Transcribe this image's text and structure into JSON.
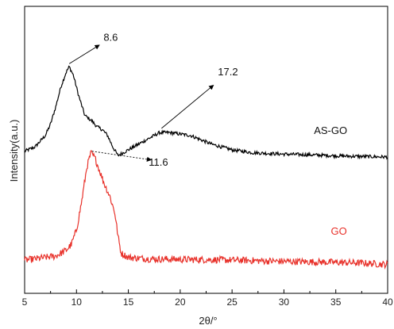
{
  "chart_data": {
    "type": "line",
    "xlabel": "2θ/°",
    "ylabel": "Intensity(a.u.)",
    "xlim": [
      5,
      40
    ],
    "xticks": [
      5,
      10,
      15,
      20,
      25,
      30,
      35,
      40
    ],
    "yticks_shown": false,
    "grid": false,
    "series": [
      {
        "name": "AS-GO",
        "color": "#000000",
        "points": [
          [
            5,
            0.495
          ],
          [
            6,
            0.51
          ],
          [
            7,
            0.55
          ],
          [
            7.5,
            0.59
          ],
          [
            8,
            0.65
          ],
          [
            8.5,
            0.72
          ],
          [
            9,
            0.77
          ],
          [
            9.3,
            0.79
          ],
          [
            9.7,
            0.76
          ],
          [
            10.2,
            0.69
          ],
          [
            10.8,
            0.62
          ],
          [
            11.5,
            0.6
          ],
          [
            12,
            0.58
          ],
          [
            12.5,
            0.57
          ],
          [
            13,
            0.55
          ],
          [
            13.5,
            0.51
          ],
          [
            14,
            0.48
          ],
          [
            14.5,
            0.49
          ],
          [
            15,
            0.5
          ],
          [
            16,
            0.52
          ],
          [
            17,
            0.54
          ],
          [
            18,
            0.56
          ],
          [
            19,
            0.56
          ],
          [
            20,
            0.555
          ],
          [
            21,
            0.55
          ],
          [
            22,
            0.535
          ],
          [
            23,
            0.52
          ],
          [
            24,
            0.51
          ],
          [
            25,
            0.5
          ],
          [
            27,
            0.49
          ],
          [
            30,
            0.485
          ],
          [
            33,
            0.482
          ],
          [
            36,
            0.478
          ],
          [
            40,
            0.475
          ]
        ]
      },
      {
        "name": "GO",
        "color": "#e8312a",
        "points": [
          [
            5,
            0.115
          ],
          [
            6,
            0.12
          ],
          [
            7,
            0.125
          ],
          [
            8,
            0.13
          ],
          [
            9,
            0.15
          ],
          [
            9.5,
            0.17
          ],
          [
            10,
            0.22
          ],
          [
            10.5,
            0.32
          ],
          [
            11,
            0.44
          ],
          [
            11.4,
            0.49
          ],
          [
            11.8,
            0.47
          ],
          [
            12.2,
            0.43
          ],
          [
            12.7,
            0.38
          ],
          [
            13.2,
            0.34
          ],
          [
            13.7,
            0.28
          ],
          [
            14,
            0.2
          ],
          [
            14.3,
            0.14
          ],
          [
            15,
            0.125
          ],
          [
            17,
            0.12
          ],
          [
            20,
            0.118
          ],
          [
            23,
            0.117
          ],
          [
            26,
            0.115
          ],
          [
            29,
            0.112
          ],
          [
            32,
            0.11
          ],
          [
            35,
            0.108
          ],
          [
            38,
            0.105
          ],
          [
            40,
            0.1
          ]
        ]
      }
    ],
    "annotations": [
      {
        "text": "8.6",
        "series": "AS-GO"
      },
      {
        "text": "17.2",
        "series": "AS-GO"
      },
      {
        "text": "11.6",
        "series": "GO"
      }
    ]
  }
}
